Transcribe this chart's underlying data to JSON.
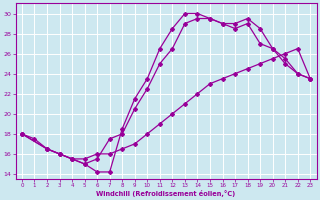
{
  "xlabel": "Windchill (Refroidissement éolien,°C)",
  "xlim": [
    -0.5,
    23.5
  ],
  "ylim": [
    13.5,
    31
  ],
  "xticks": [
    0,
    1,
    2,
    3,
    4,
    5,
    6,
    7,
    8,
    9,
    10,
    11,
    12,
    13,
    14,
    15,
    16,
    17,
    18,
    19,
    20,
    21,
    22,
    23
  ],
  "yticks": [
    14,
    16,
    18,
    20,
    22,
    24,
    26,
    28,
    30
  ],
  "bg_color": "#cde8f0",
  "grid_color": "#b0d8e8",
  "line_color": "#990099",
  "line1_x": [
    0,
    1,
    2,
    3,
    4,
    5,
    6,
    7,
    8,
    9,
    10,
    11,
    12,
    13,
    14,
    15,
    16,
    17,
    18,
    19,
    20,
    21,
    22,
    23
  ],
  "line1_y": [
    18,
    17.5,
    16.5,
    16,
    15.5,
    15,
    14.2,
    14.2,
    18.5,
    21.5,
    23.5,
    26.5,
    28.5,
    30,
    30,
    29.5,
    29,
    29,
    29.5,
    28.5,
    26.5,
    25,
    24,
    23.5
  ],
  "line2_x": [
    0,
    2,
    3,
    4,
    5,
    6,
    7,
    8,
    9,
    10,
    11,
    12,
    13,
    14,
    15,
    16,
    17,
    18,
    19,
    20,
    21,
    22,
    23
  ],
  "line2_y": [
    18,
    16.5,
    16,
    15.5,
    15,
    15.5,
    17.5,
    18,
    20.5,
    22.5,
    25,
    26.5,
    29,
    29.5,
    29.5,
    29,
    28.5,
    29,
    27,
    26.5,
    25.5,
    24,
    23.5
  ],
  "line3_x": [
    0,
    2,
    3,
    4,
    5,
    6,
    7,
    8,
    9,
    10,
    11,
    12,
    13,
    14,
    15,
    16,
    17,
    18,
    19,
    20,
    21,
    22,
    23
  ],
  "line3_y": [
    18,
    16.5,
    16,
    15.5,
    15.5,
    16,
    16,
    16.5,
    17,
    18,
    19,
    20,
    21,
    22,
    23,
    23.5,
    24,
    24.5,
    25,
    25.5,
    26,
    26.5,
    23.5
  ]
}
